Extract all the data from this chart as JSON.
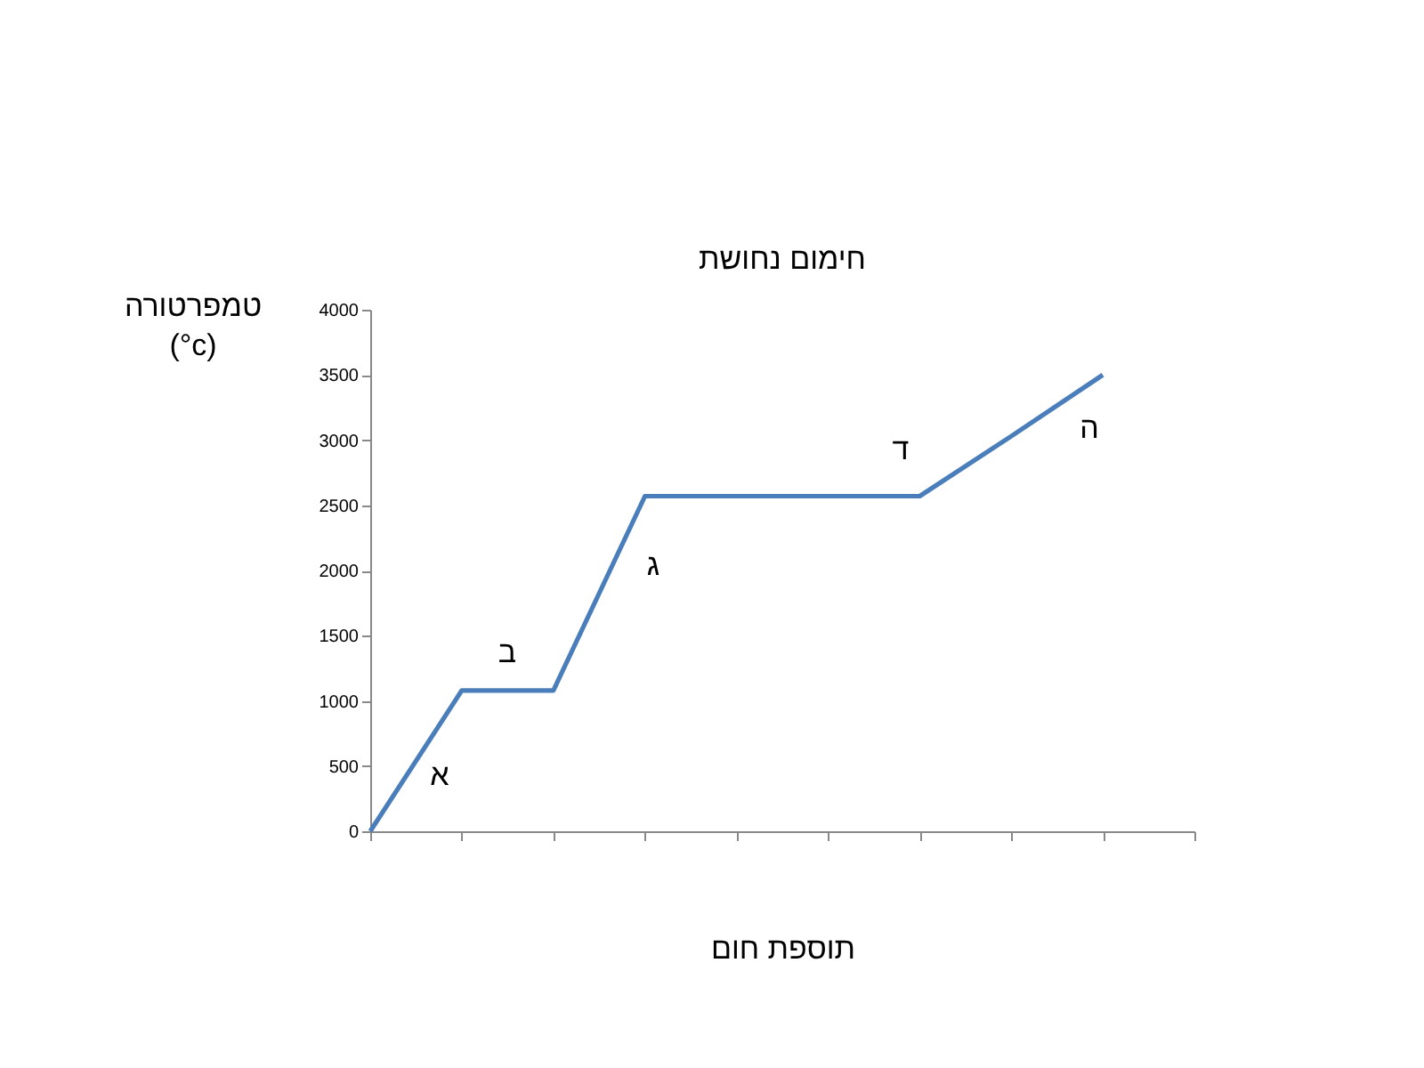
{
  "chart_data": {
    "type": "line",
    "title": "חימום נחושת",
    "xlabel": "תוספת חום",
    "ylabel": "טמפרטורה (°c)",
    "categories": [
      null,
      null,
      null,
      null,
      null,
      null,
      null,
      null,
      null,
      null
    ],
    "series": [
      {
        "color": "#4a7ebb",
        "values": [
          0,
          1080,
          1080,
          2570,
          2570,
          2570,
          2570,
          3030,
          3500,
          null
        ]
      }
    ],
    "ylim": [
      0,
      4000
    ],
    "yticks": [
      0,
      500,
      1000,
      1500,
      2000,
      2500,
      3000,
      3500,
      4000
    ],
    "tick_labels": "y",
    "grid": false,
    "marker": "none",
    "line_style": "solid",
    "annotations": [
      "א",
      "ב",
      "ג",
      "ד",
      "ה"
    ]
  }
}
